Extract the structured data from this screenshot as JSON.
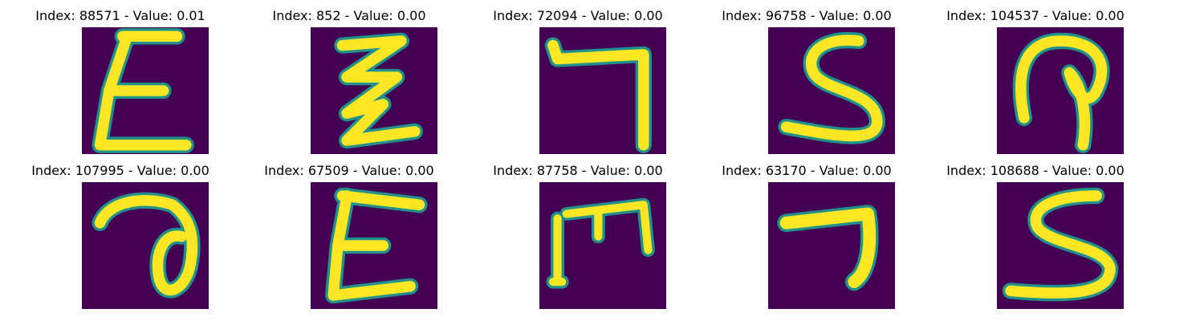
{
  "figure": {
    "background_color": "#440154",
    "stroke_color": "#fde725",
    "edge_color": "#21918c",
    "panels": [
      {
        "title": "Index: 88571 - Value: 0.01",
        "glyph": "E-like"
      },
      {
        "title": "Index: 852 - Value: 0.00",
        "glyph": "Z-like"
      },
      {
        "title": "Index: 72094 - Value: 0.00",
        "glyph": "7-like"
      },
      {
        "title": "Index: 96758 - Value: 0.00",
        "glyph": "S-like"
      },
      {
        "title": "Index: 104537 - Value: 0.00",
        "glyph": "loop-like"
      },
      {
        "title": "Index: 107995 - Value: 0.00",
        "glyph": "a-like"
      },
      {
        "title": "Index: 67509 - Value: 0.00",
        "glyph": "E-like"
      },
      {
        "title": "Index: 87758 - Value: 0.00",
        "glyph": "M-like"
      },
      {
        "title": "Index: 63170 - Value: 0.00",
        "glyph": "7-like"
      },
      {
        "title": "Index: 108688 - Value: 0.00",
        "glyph": "S-like"
      }
    ]
  }
}
